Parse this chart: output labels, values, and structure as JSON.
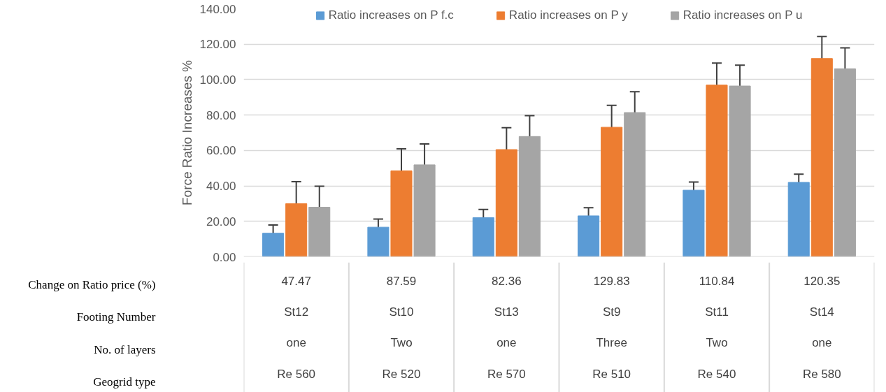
{
  "chart_data": {
    "type": "bar",
    "ylabel": "Force Ratio Increases %",
    "categories": [
      "47.47\nSt12\none\nRe 560",
      "87.59\nSt10\nTwo\nRe 520",
      "82.36\nSt13\none\nRe 570",
      "129.83\nSt9\nThree\nRe 510",
      "110.84\nSt11\nTwo\nRe 540",
      "120.35\nSt14\none\nRe 580"
    ],
    "series": [
      {
        "name": "Ratio increases on P f.c",
        "color": "#5b9bd5",
        "values": [
          13.3,
          16.7,
          22.1,
          23.1,
          37.6,
          42.0
        ],
        "errors": [
          4.6,
          4.6,
          4.6,
          4.6,
          4.6,
          4.6
        ]
      },
      {
        "name": "Ratio increases on P y",
        "color": "#ed7d31",
        "values": [
          30.0,
          48.5,
          60.5,
          73.1,
          96.9,
          111.9
        ],
        "errors": [
          12.4,
          12.4,
          12.4,
          12.4,
          12.4,
          12.4
        ]
      },
      {
        "name": "Ratio increases on P u",
        "color": "#a5a5a5",
        "values": [
          28.0,
          51.9,
          67.9,
          81.4,
          96.4,
          106.1
        ],
        "errors": [
          11.8,
          11.8,
          11.8,
          11.8,
          11.8,
          11.8
        ]
      }
    ],
    "ylim": [
      0,
      140
    ],
    "yticks": [
      {
        "value": 0,
        "label": "0.00"
      },
      {
        "value": 20,
        "label": "20.00"
      },
      {
        "value": 40,
        "label": "40.00"
      },
      {
        "value": 60,
        "label": "60.00"
      },
      {
        "value": 80,
        "label": "80.00"
      },
      {
        "value": 100,
        "label": "100.00"
      },
      {
        "value": 120,
        "label": "120.00"
      },
      {
        "value": 140,
        "label": "140.00"
      }
    ],
    "grid": "y",
    "legend": "top",
    "annotations": [
      "Change on Ratio price (%)",
      "Footing Number",
      "No. of layers",
      "Geogrid type"
    ]
  }
}
